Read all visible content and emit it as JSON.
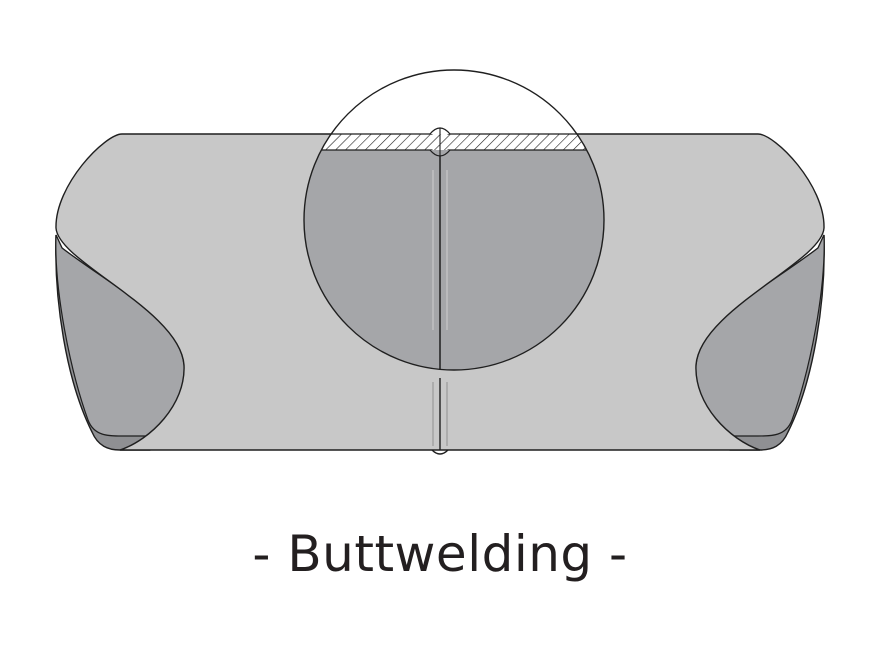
{
  "caption": "- Buttwelding -",
  "colors": {
    "pipe_body": "#c8c8c8",
    "pipe_inside": "#a5a6a9",
    "pipe_inside_dark": "#8f9093",
    "outline": "#1f1f1f",
    "weld_line": "#9a9a9a",
    "caption_text": "#231f20"
  },
  "icons": {
    "pipe": "pipe-illustration",
    "magnifier": "magnified-weld-cross-section"
  }
}
